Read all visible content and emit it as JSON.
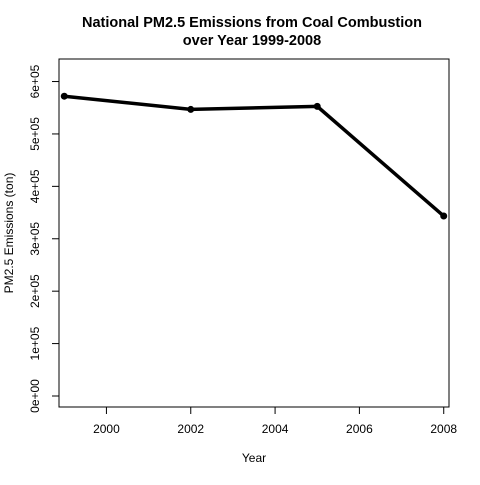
{
  "chart_data": {
    "type": "line",
    "title": "National PM2.5 Emissions from Coal Combustion",
    "subtitle": "over Year 1999-2008",
    "xlabel": "Year",
    "ylabel": "PM2.5 Emissions (ton)",
    "x": [
      1999,
      2002,
      2005,
      2008
    ],
    "series": [
      {
        "values": [
          572000,
          546800,
          552600,
          343400
        ]
      }
    ],
    "xticks": [
      2000,
      2002,
      2004,
      2006,
      2008
    ],
    "xtick_labels": [
      "2000",
      "2002",
      "2004",
      "2006",
      "2008"
    ],
    "yticks": [
      0,
      100000,
      200000,
      300000,
      400000,
      500000,
      600000
    ],
    "ytick_labels": [
      "0e+00",
      "1e+05",
      "2e+05",
      "3e+05",
      "4e+05",
      "5e+05",
      "6e+05"
    ],
    "xlim": [
      1998.875,
      2008.125
    ],
    "ylim": [
      -21000,
      643000
    ],
    "grid": false,
    "line_color": "#000000"
  }
}
